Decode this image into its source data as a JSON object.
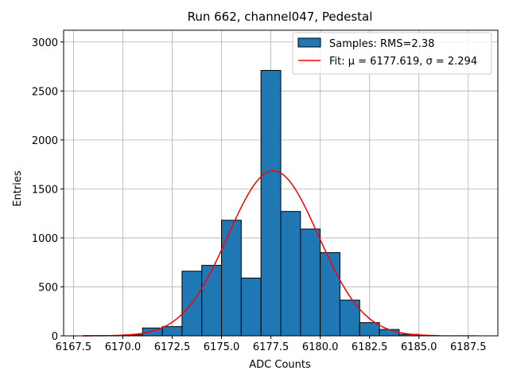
{
  "chart_data": {
    "type": "bar",
    "title": "Run 662, channel047, Pedestal",
    "xlabel": "ADC Counts",
    "ylabel": "Entries",
    "xlim": [
      6167.0,
      6189.0
    ],
    "ylim": [
      0,
      3120
    ],
    "xticks": [
      6167.5,
      6170.0,
      6172.5,
      6175.0,
      6177.5,
      6180.0,
      6182.5,
      6185.0,
      6187.5
    ],
    "xtick_labels": [
      "6167.5",
      "6170.0",
      "6172.5",
      "6175.0",
      "6177.5",
      "6180.0",
      "6182.5",
      "6185.0",
      "6187.5"
    ],
    "yticks": [
      0,
      500,
      1000,
      1500,
      2000,
      2500,
      3000
    ],
    "ytick_labels": [
      "0",
      "500",
      "1000",
      "1500",
      "2000",
      "2500",
      "3000"
    ],
    "grid": true,
    "legend_position": "top-right",
    "histogram": {
      "name": "Samples: RMS=2.38",
      "color": "#1f77b4",
      "edge_color": "#000000",
      "bin_edges": [
        6168.0,
        6169.0,
        6170.0,
        6171.0,
        6172.0,
        6173.0,
        6174.0,
        6175.0,
        6176.0,
        6177.0,
        6178.0,
        6179.0,
        6180.0,
        6181.0,
        6182.0,
        6183.0,
        6184.0,
        6185.0,
        6186.0,
        6187.0,
        6188.0
      ],
      "counts": [
        2,
        4,
        10,
        80,
        95,
        660,
        720,
        1180,
        590,
        2710,
        1270,
        1090,
        850,
        365,
        135,
        65,
        15,
        3,
        1,
        1
      ]
    },
    "fit": {
      "name": "Fit: μ = 6177.619, σ = 2.294",
      "color": "#ff0000",
      "mu": 6177.619,
      "sigma": 2.294,
      "amplitude": 1685,
      "x_range": [
        6168.0,
        6186.0
      ]
    }
  }
}
